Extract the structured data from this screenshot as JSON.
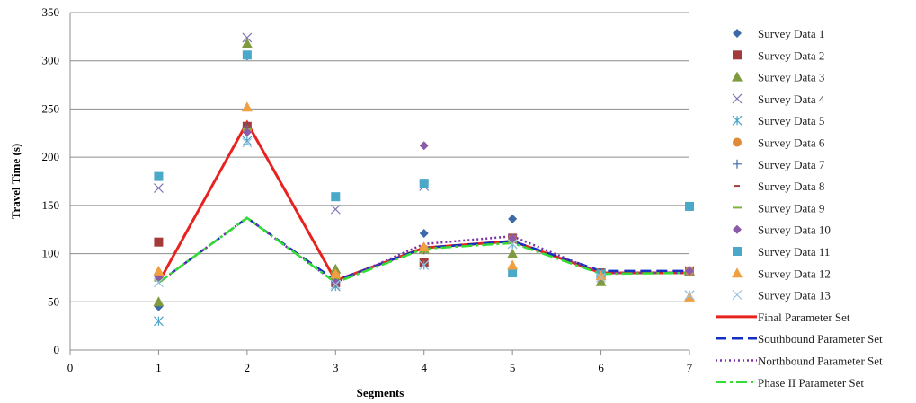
{
  "chart_data": {
    "type": "scatter",
    "xlabel": "Segments",
    "ylabel": "Travel Time (s)",
    "xlim": [
      0,
      7
    ],
    "ylim": [
      0,
      350
    ],
    "x_ticks": [
      "0",
      "1",
      "2",
      "3",
      "4",
      "5",
      "6",
      "7"
    ],
    "y_ticks": [
      "0",
      "50",
      "100",
      "150",
      "200",
      "250",
      "300",
      "350"
    ],
    "grid": "horizontal",
    "legend_position": "right",
    "series": [
      {
        "name": "Survey Data 1",
        "kind": "marker",
        "marker": "diamond",
        "color": "#3c6aa8",
        "points": [
          [
            1,
            45
          ],
          [
            2,
            305
          ],
          [
            3,
            75
          ],
          [
            4,
            121
          ],
          [
            5,
            136
          ],
          [
            6,
            75
          ],
          [
            7,
            82
          ]
        ]
      },
      {
        "name": "Survey Data 2",
        "kind": "marker",
        "marker": "square",
        "color": "#a33b3b",
        "points": [
          [
            1,
            112
          ],
          [
            2,
            232
          ],
          [
            3,
            70
          ],
          [
            4,
            91
          ],
          [
            5,
            116
          ],
          [
            6,
            80
          ],
          [
            7,
            82
          ]
        ]
      },
      {
        "name": "Survey Data 3",
        "kind": "marker",
        "marker": "triangle",
        "color": "#7f9a3f",
        "points": [
          [
            1,
            50
          ],
          [
            2,
            318
          ],
          [
            3,
            84
          ],
          [
            4,
            105
          ],
          [
            5,
            100
          ],
          [
            6,
            71
          ],
          [
            7,
            82
          ]
        ]
      },
      {
        "name": "Survey Data 4",
        "kind": "marker",
        "marker": "x",
        "color": "#7f78b8",
        "points": [
          [
            1,
            168
          ],
          [
            2,
            324
          ],
          [
            3,
            146
          ],
          [
            4,
            170
          ],
          [
            5,
            115
          ],
          [
            6,
            78
          ],
          [
            7,
            82
          ]
        ]
      },
      {
        "name": "Survey Data 5",
        "kind": "marker",
        "marker": "asterisk",
        "color": "#4aa3c7",
        "points": [
          [
            1,
            30
          ],
          [
            2,
            217
          ],
          [
            3,
            66
          ],
          [
            4,
            88
          ],
          [
            5,
            110
          ],
          [
            6,
            80
          ],
          [
            7,
            57
          ]
        ]
      },
      {
        "name": "Survey Data 6",
        "kind": "marker",
        "marker": "circle",
        "color": "#e08a3c",
        "points": [
          [
            1,
            78
          ],
          [
            2,
            228
          ],
          [
            3,
            77
          ],
          [
            4,
            105
          ],
          [
            5,
            115
          ],
          [
            6,
            79
          ],
          [
            7,
            82
          ]
        ]
      },
      {
        "name": "Survey Data 7",
        "kind": "marker",
        "marker": "plus",
        "color": "#3c6aa8",
        "points": [
          [
            1,
            74
          ],
          [
            2,
            230
          ],
          [
            3,
            72
          ],
          [
            4,
            104
          ],
          [
            5,
            113
          ],
          [
            6,
            80
          ],
          [
            7,
            82
          ]
        ]
      },
      {
        "name": "Survey Data 8",
        "kind": "marker",
        "marker": "dash",
        "color": "#a33b3b",
        "points": [
          [
            1,
            73
          ],
          [
            2,
            231
          ],
          [
            3,
            71
          ],
          [
            4,
            103
          ],
          [
            5,
            114
          ],
          [
            6,
            80
          ],
          [
            7,
            82
          ]
        ]
      },
      {
        "name": "Survey Data 9",
        "kind": "marker",
        "marker": "hline",
        "color": "#7fb23f",
        "points": [
          [
            1,
            72
          ],
          [
            2,
            229
          ],
          [
            3,
            74
          ],
          [
            4,
            102
          ],
          [
            5,
            112
          ],
          [
            6,
            80
          ],
          [
            7,
            82
          ]
        ]
      },
      {
        "name": "Survey Data 10",
        "kind": "marker",
        "marker": "diamond",
        "color": "#8a5ba8",
        "points": [
          [
            1,
            76
          ],
          [
            2,
            226
          ],
          [
            3,
            70
          ],
          [
            4,
            212
          ],
          [
            5,
            116
          ],
          [
            6,
            76
          ],
          [
            7,
            82
          ]
        ]
      },
      {
        "name": "Survey Data 11",
        "kind": "marker",
        "marker": "square",
        "color": "#4aa8c8",
        "points": [
          [
            1,
            180
          ],
          [
            2,
            306
          ],
          [
            3,
            159
          ],
          [
            4,
            173
          ],
          [
            5,
            80
          ],
          [
            6,
            78
          ],
          [
            7,
            149
          ]
        ]
      },
      {
        "name": "Survey Data 12",
        "kind": "marker",
        "marker": "triangle",
        "color": "#f0a040",
        "points": [
          [
            1,
            82
          ],
          [
            2,
            252
          ],
          [
            3,
            79
          ],
          [
            4,
            107
          ],
          [
            5,
            88
          ],
          [
            6,
            77
          ],
          [
            7,
            55
          ]
        ]
      },
      {
        "name": "Survey Data 13",
        "kind": "marker",
        "marker": "x",
        "color": "#9cc3e0",
        "points": [
          [
            1,
            70
          ],
          [
            2,
            215
          ],
          [
            3,
            68
          ],
          [
            4,
            88
          ],
          [
            5,
            110
          ],
          [
            6,
            75
          ],
          [
            7,
            57
          ]
        ]
      },
      {
        "name": "Final Parameter Set",
        "kind": "line",
        "dash": "solid",
        "width": 3,
        "color": "#e8231f",
        "points": [
          [
            1,
            70
          ],
          [
            2,
            236
          ],
          [
            3,
            72
          ],
          [
            4,
            106
          ],
          [
            5,
            113
          ],
          [
            6,
            80
          ],
          [
            7,
            80
          ]
        ]
      },
      {
        "name": "Southbound Parameter Set",
        "kind": "line",
        "dash": "longdash",
        "width": 2.5,
        "color": "#1530c0",
        "points": [
          [
            1,
            70
          ],
          [
            2,
            137
          ],
          [
            3,
            72
          ],
          [
            4,
            106
          ],
          [
            5,
            113
          ],
          [
            6,
            82
          ],
          [
            7,
            82
          ]
        ]
      },
      {
        "name": "Northbound Parameter Set",
        "kind": "line",
        "dash": "dotted",
        "width": 2.5,
        "color": "#7a33a6",
        "points": [
          [
            1,
            70
          ],
          [
            2,
            137
          ],
          [
            3,
            70
          ],
          [
            4,
            110
          ],
          [
            5,
            118
          ],
          [
            6,
            80
          ],
          [
            7,
            80
          ]
        ]
      },
      {
        "name": "Phase II Parameter Set",
        "kind": "line",
        "dash": "dashdot",
        "width": 2.5,
        "color": "#33dd33",
        "points": [
          [
            1,
            70
          ],
          [
            2,
            137
          ],
          [
            3,
            70
          ],
          [
            4,
            105
          ],
          [
            5,
            111
          ],
          [
            6,
            79
          ],
          [
            7,
            80
          ]
        ]
      }
    ]
  }
}
